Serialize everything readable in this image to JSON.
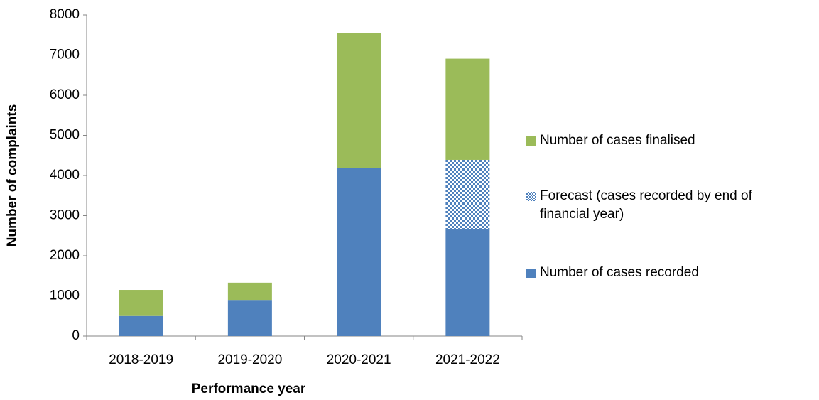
{
  "chart_data": {
    "type": "stacked_bar",
    "x_label": "Performance year",
    "y_label": "Number of complaints",
    "categories": [
      "2018-2019",
      "2019-2020",
      "2020-2021",
      "2021-2022"
    ],
    "series": [
      {
        "name": "Number of cases recorded",
        "color": "#4f81bd",
        "values": [
          500,
          900,
          4180,
          2670
        ]
      },
      {
        "name": "Forecast (cases recorded by end of financial year)",
        "color": "#4f81bd",
        "pattern": "checker",
        "values": [
          null,
          null,
          null,
          1720
        ]
      },
      {
        "name": "Number of cases finalised",
        "color": "#9bbb59",
        "values": [
          650,
          430,
          3360,
          2520
        ]
      }
    ],
    "ylim": [
      0,
      8000
    ],
    "yticks": [
      0,
      1000,
      2000,
      3000,
      4000,
      5000,
      6000,
      7000,
      8000
    ],
    "grid": false,
    "legend": "right"
  }
}
